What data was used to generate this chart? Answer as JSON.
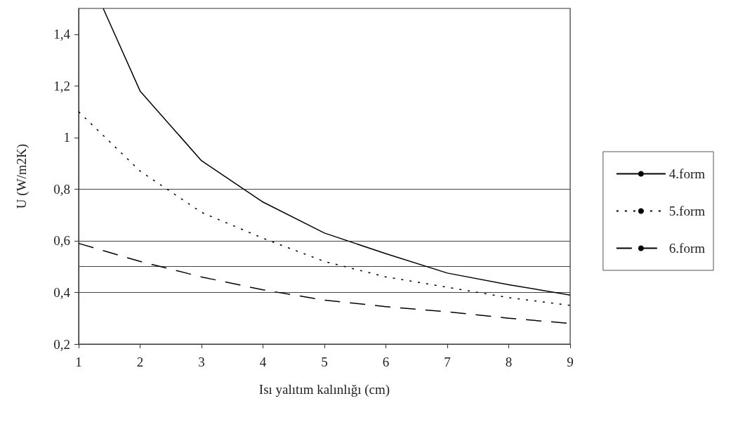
{
  "chart_data": {
    "type": "line",
    "xlabel": "Isı yalıtım kalınlığı (cm)",
    "ylabel": "U (W/m2K)",
    "x": [
      1,
      2,
      3,
      4,
      5,
      6,
      7,
      8,
      9
    ],
    "series": [
      {
        "name": "4.form",
        "color": "#000000",
        "line_style": "solid",
        "x": [
          1.4,
          2,
          3,
          4,
          5,
          6,
          7,
          8,
          9
        ],
        "values": [
          1.5,
          1.18,
          0.91,
          0.75,
          0.63,
          0.55,
          0.475,
          0.43,
          0.39
        ]
      },
      {
        "name": "5.form",
        "color": "#000000",
        "line_style": "dotted",
        "values": [
          1.1,
          0.87,
          0.71,
          0.61,
          0.52,
          0.46,
          0.42,
          0.38,
          0.35
        ]
      },
      {
        "name": "6.form",
        "color": "#000000",
        "line_style": "dashed",
        "values": [
          0.59,
          0.52,
          0.46,
          0.41,
          0.37,
          0.345,
          0.325,
          0.3,
          0.28
        ]
      }
    ],
    "xlim": [
      1,
      9
    ],
    "xticks": [
      1,
      2,
      3,
      4,
      5,
      6,
      7,
      8,
      9
    ],
    "ylim": [
      0.2,
      1.5
    ],
    "yticks": [
      {
        "value": 0.2,
        "label": "0,2"
      },
      {
        "value": 0.4,
        "label": "0,4"
      },
      {
        "value": 0.6,
        "label": "0,6"
      },
      {
        "value": 0.8,
        "label": "0,8"
      },
      {
        "value": 1,
        "label": "1"
      },
      {
        "value": 1.2,
        "label": "1,2"
      },
      {
        "value": 1.4,
        "label": "1,4"
      }
    ],
    "ref_lines": [
      {
        "axis": "y",
        "value": 0.4,
        "color": "#444444"
      },
      {
        "axis": "y",
        "value": 0.5,
        "color": "#444444"
      },
      {
        "axis": "y",
        "value": 0.6,
        "color": "#444444"
      },
      {
        "axis": "y",
        "value": 0.8,
        "color": "#444444"
      }
    ],
    "grid": false,
    "legend": "right",
    "marker": "none"
  }
}
